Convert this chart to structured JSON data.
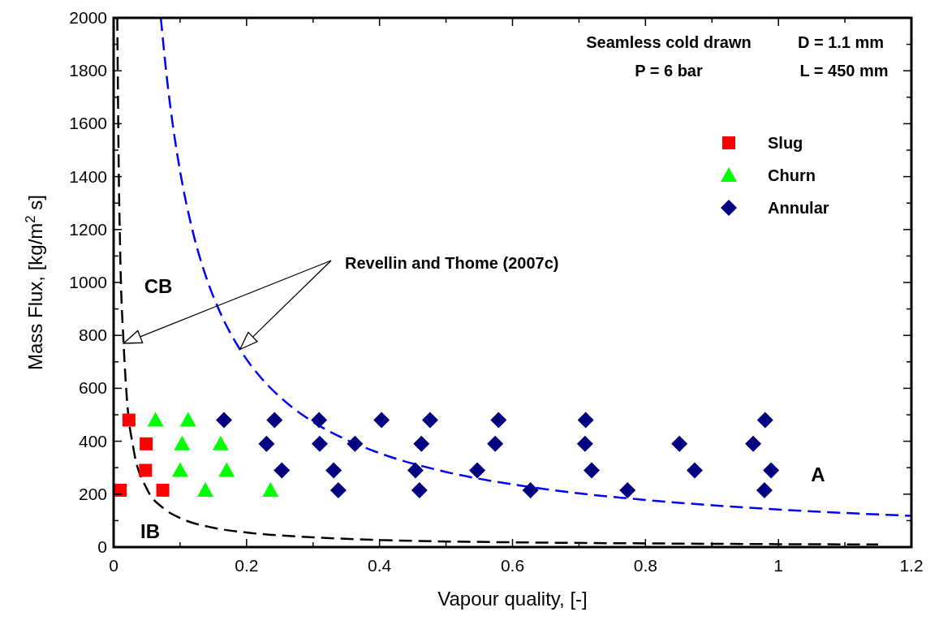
{
  "chart_data": {
    "type": "scatter",
    "xlabel": "Vapour quality, [-]",
    "ylabel": "Mass Flux, [kg/m$^{2}$ s]",
    "xlim": [
      0,
      1.2
    ],
    "ylim": [
      0,
      2000
    ],
    "xticks": [
      0,
      {
        "value": 0.1,
        "label": null
      },
      0.2,
      {
        "value": 0.3,
        "label": null
      },
      0.4,
      {
        "value": 0.5,
        "label": null
      },
      0.6,
      {
        "value": 0.7,
        "label": null
      },
      0.8,
      {
        "value": 0.9,
        "label": null
      },
      1,
      {
        "value": 1.1,
        "label": null
      },
      1.2
    ],
    "yticks": [
      0,
      {
        "value": 100,
        "label": null
      },
      200,
      {
        "value": 300,
        "label": null
      },
      400,
      {
        "value": 500,
        "label": null
      },
      600,
      {
        "value": 700,
        "label": null
      },
      800,
      {
        "value": 900,
        "label": null
      },
      1000,
      {
        "value": 1100,
        "label": null
      },
      1200,
      {
        "value": 1300,
        "label": null
      },
      1400,
      {
        "value": 1500,
        "label": null
      },
      1600,
      {
        "value": 1700,
        "label": null
      },
      1800,
      {
        "value": 1900,
        "label": null
      },
      2000
    ],
    "grid": false,
    "legend": "top right",
    "series": [
      {
        "name": "Slug",
        "color": "#ff0000",
        "marker": "square",
        "x": [
          0.023,
          0.049,
          0.048,
          0.01,
          0.074
        ],
        "values": [
          480,
          390,
          290,
          215,
          215
        ]
      },
      {
        "name": "Churn",
        "color": "#00ff00",
        "marker": "triangle",
        "x": [
          0.063,
          0.112,
          0.103,
          0.161,
          0.1,
          0.17,
          0.138,
          0.236
        ],
        "values": [
          480,
          480,
          390,
          390,
          290,
          290,
          215,
          215
        ]
      },
      {
        "name": "Annular",
        "color": "#000080",
        "marker": "diamond",
        "x": [
          0.166,
          0.242,
          0.309,
          0.403,
          0.476,
          0.579,
          0.71,
          0.98,
          0.23,
          0.31,
          0.363,
          0.463,
          0.574,
          0.709,
          0.851,
          0.962,
          0.253,
          0.331,
          0.454,
          0.547,
          0.719,
          0.874,
          0.989,
          0.338,
          0.46,
          0.627,
          0.773,
          0.979
        ],
        "values": [
          480,
          480,
          480,
          480,
          480,
          480,
          480,
          480,
          390,
          390,
          390,
          390,
          390,
          390,
          390,
          390,
          290,
          290,
          290,
          290,
          290,
          290,
          290,
          215,
          215,
          215,
          215,
          215
        ]
      },
      {
        "type": "line",
        "color": "#000000",
        "line_style": "dashed",
        "x": [
          0.0055,
          0.0075,
          0.01,
          0.015,
          0.02,
          0.03,
          0.05,
          0.075,
          0.1,
          0.15,
          0.2,
          0.3,
          0.4,
          0.6,
          0.8,
          1.0,
          1.15
        ],
        "values": [
          2000,
          1470,
          1100,
          770,
          560,
          370,
          220,
          147,
          110,
          73,
          55,
          37,
          27,
          18,
          14,
          11,
          10
        ]
      },
      {
        "type": "line",
        "color": "#0000ff",
        "line_style": "dashed",
        "x": [
          0.071,
          0.08,
          0.09,
          0.1,
          0.12,
          0.14,
          0.16,
          0.19,
          0.22,
          0.26,
          0.3,
          0.35,
          0.4,
          0.5,
          0.6,
          0.7,
          0.8,
          0.9,
          1.0,
          1.1,
          1.2
        ],
        "values": [
          2000,
          1775,
          1578,
          1420,
          1183,
          1014,
          888,
          747,
          645,
          546,
          473,
          406,
          355,
          284,
          237,
          203,
          178,
          158,
          142,
          129,
          118
        ]
      }
    ],
    "annotations": [
      "Seamless cold drawn",
      "P = 6 bar",
      "D = 1.1 mm",
      "L = 450 mm",
      "Revellin and Thome (2007c)",
      "CB",
      "IB",
      "A"
    ]
  }
}
